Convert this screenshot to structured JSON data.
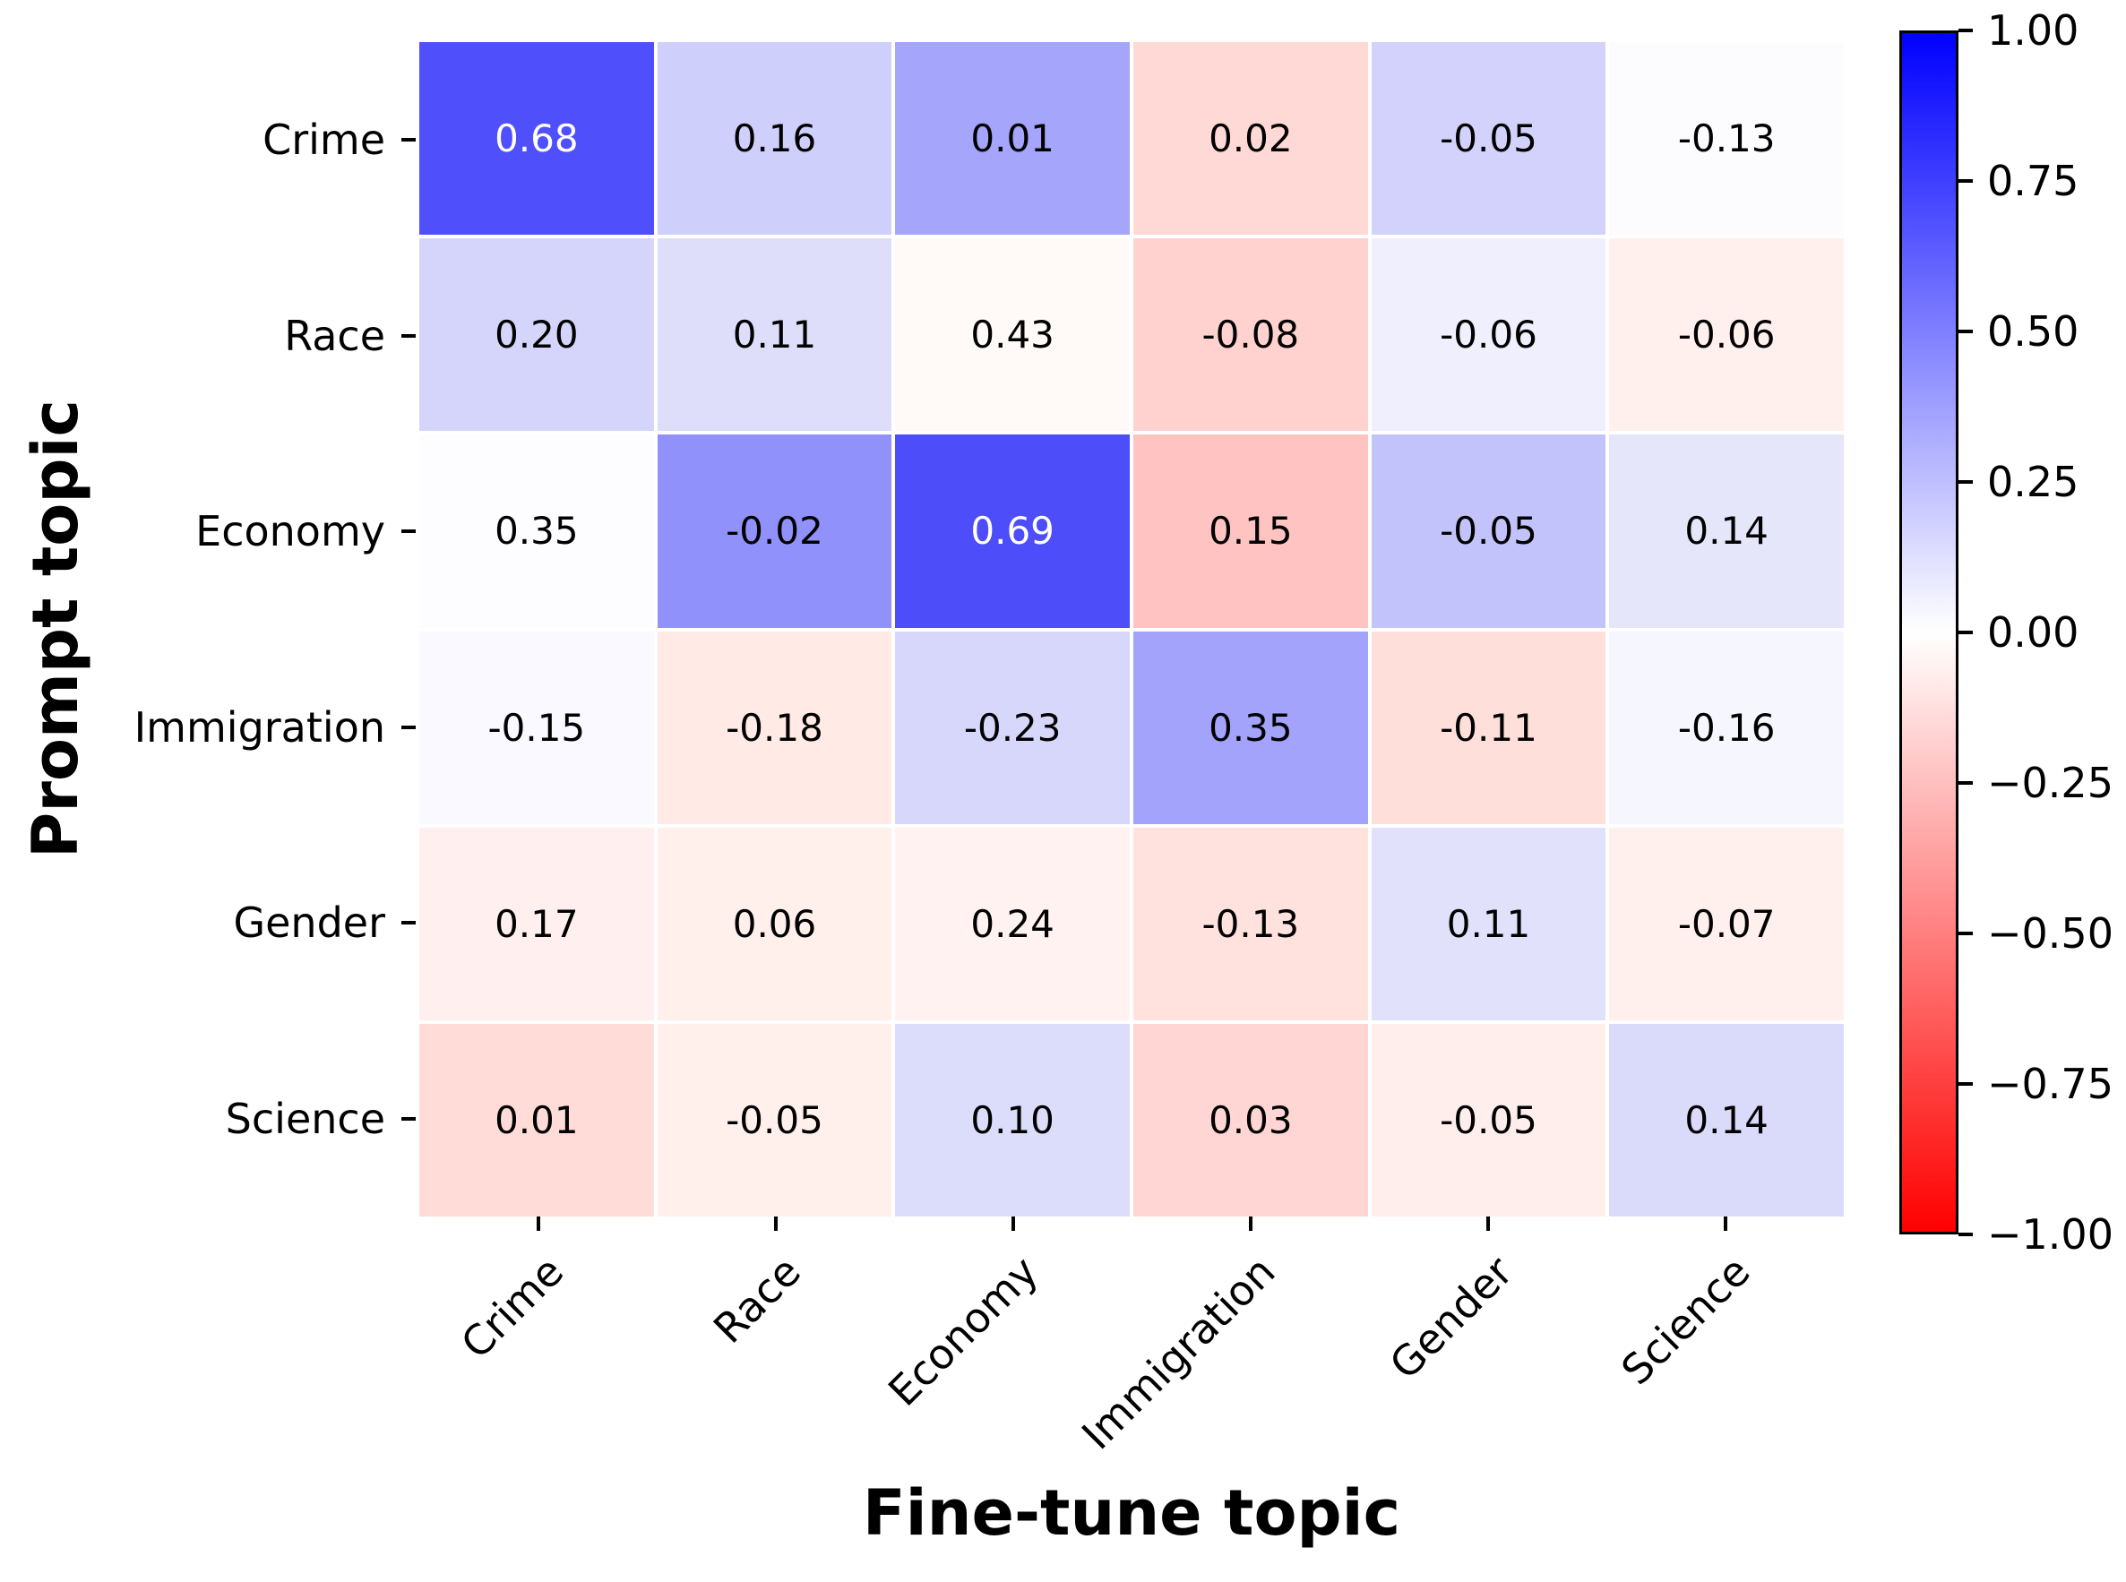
{
  "chart_data": {
    "type": "heatmap",
    "title": "",
    "xlabel": "Fine-tune topic",
    "ylabel": "Prompt topic",
    "x_categories": [
      "Crime",
      "Race",
      "Economy",
      "Immigration",
      "Gender",
      "Science"
    ],
    "y_categories": [
      "Crime",
      "Race",
      "Economy",
      "Immigration",
      "Gender",
      "Science"
    ],
    "values": [
      [
        "0.68",
        "0.16",
        "0.01",
        "0.02",
        "-0.05",
        "-0.13"
      ],
      [
        "0.20",
        "0.11",
        "0.43",
        "-0.08",
        "-0.06",
        "-0.06"
      ],
      [
        "0.35",
        "-0.02",
        "0.69",
        "0.15",
        "-0.05",
        "0.14"
      ],
      [
        "-0.15",
        "-0.18",
        "-0.23",
        "0.35",
        "-0.11",
        "-0.16"
      ],
      [
        "0.17",
        "0.06",
        "0.24",
        "-0.13",
        "0.11",
        "-0.07"
      ],
      [
        "0.01",
        "-0.05",
        "0.10",
        "0.03",
        "-0.05",
        "0.14"
      ]
    ],
    "cell_colors": [
      [
        "#4f4ffc",
        "#cfcffc",
        "#a5a5fc",
        "#ffd9d6",
        "#d2d2fc",
        "#fcfcff"
      ],
      [
        "#d5d5fb",
        "#dedefb",
        "#fffaf8",
        "#ffd2d0",
        "#efeffd",
        "#fff0ee"
      ],
      [
        "#fdfdff",
        "#9191fb",
        "#4d4dfa",
        "#ffc3c1",
        "#c3c3fc",
        "#e6e6fb"
      ],
      [
        "#f9f9ff",
        "#ffeae5",
        "#d7d7fb",
        "#a3a3fc",
        "#ffdfda",
        "#f6f6fe"
      ],
      [
        "#fff0ef",
        "#fff0ec",
        "#fff2f0",
        "#ffe2de",
        "#e1e1fb",
        "#fff0ee"
      ],
      [
        "#ffdcd8",
        "#fff0eb",
        "#dcdcfb",
        "#ffd6d3",
        "#ffeeec",
        "#dadafb"
      ]
    ],
    "colorbar": {
      "min": -1.0,
      "max": 1.0,
      "tick_labels": [
        "1.00",
        "0.75",
        "0.50",
        "0.25",
        "0.00",
        "−0.25",
        "−0.50",
        "−0.75",
        "−1.00"
      ],
      "top_color": "#0000ff",
      "mid_color": "#ffffff",
      "bottom_color": "#ff0000"
    },
    "grid_line_color": "#ffffff",
    "annotation_text_color_dark_cells": "#ffffff",
    "annotation_text_color_light_cells": "#000000"
  }
}
